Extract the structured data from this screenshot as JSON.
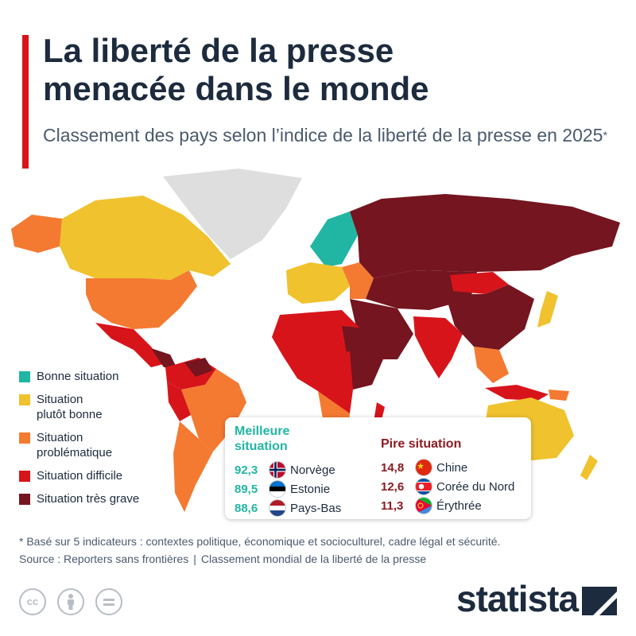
{
  "header": {
    "title_line1": "La liberté de la presse",
    "title_line2": "menacée dans le monde",
    "subtitle": "Classement des pays selon l’indice de la liberté de la presse en 2025",
    "subtitle_mark": "*"
  },
  "legend": [
    {
      "label": "Bonne situation",
      "color": "#21b5a3"
    },
    {
      "label": "Situation\nplutôt bonne",
      "color": "#f0c22e"
    },
    {
      "label": "Situation\nproblématique",
      "color": "#f47a31"
    },
    {
      "label": "Situation difficile",
      "color": "#d8141b"
    },
    {
      "label": "Situation très grave",
      "color": "#74151f"
    }
  ],
  "best": {
    "title": "Meilleure\nsituation",
    "rows": [
      {
        "score": "92,3",
        "country": "Norvège",
        "flag": "norway-flag"
      },
      {
        "score": "89,5",
        "country": "Estonie",
        "flag": "estonia-flag"
      },
      {
        "score": "88,6",
        "country": "Pays-Bas",
        "flag": "netherlands-flag"
      }
    ]
  },
  "worst": {
    "title": "Pire situation",
    "rows": [
      {
        "score": "14,8",
        "country": "Chine",
        "flag": "china-flag"
      },
      {
        "score": "12,6",
        "country": "Corée du Nord",
        "flag": "north-korea-flag"
      },
      {
        "score": "11,3",
        "country": "Érythrée",
        "flag": "eritrea-flag"
      }
    ]
  },
  "footnote": "* Basé sur 5 indicateurs : contextes politique, économique et socioculturel, cadre légal et sécurité.",
  "source_label": "Source : Reporters sans frontières",
  "source_separator": "|",
  "source_detail": "Classement mondial de la liberté de la presse",
  "brand": "statista",
  "map_colors": {
    "good": "#21b5a3",
    "fairly_good": "#f0c22e",
    "problematic": "#f47a31",
    "difficult": "#d8141b",
    "very_serious": "#74151f",
    "no_data": "#dedede"
  }
}
